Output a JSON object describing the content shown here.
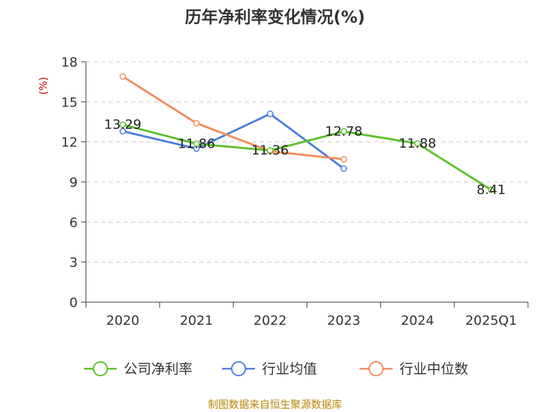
{
  "chart_data": {
    "type": "line",
    "title": "历年净利率变化情况(%)",
    "ylabel": "(%)",
    "categories": [
      "2020",
      "2021",
      "2022",
      "2023",
      "2024",
      "2025Q1"
    ],
    "ylim": [
      0,
      18
    ],
    "yticks": [
      0,
      3,
      6,
      9,
      12,
      15,
      18
    ],
    "grid": true,
    "legend_position": "bottom",
    "series": [
      {
        "name": "公司净利率",
        "color": "#5cc12a",
        "values": [
          13.29,
          11.86,
          11.36,
          12.78,
          11.88,
          8.41
        ],
        "labels": [
          "13.29",
          "11.86",
          "11.36",
          "12.78",
          "11.88",
          "8.41"
        ]
      },
      {
        "name": "行业均值",
        "color": "#4a7ddb",
        "values": [
          12.8,
          11.5,
          14.1,
          10.0,
          null,
          null
        ]
      },
      {
        "name": "行业中位数",
        "color": "#f28c5a",
        "values": [
          16.9,
          13.4,
          11.3,
          10.7,
          null,
          null
        ]
      }
    ]
  },
  "source": "制图数据来自恒生聚源数据库"
}
